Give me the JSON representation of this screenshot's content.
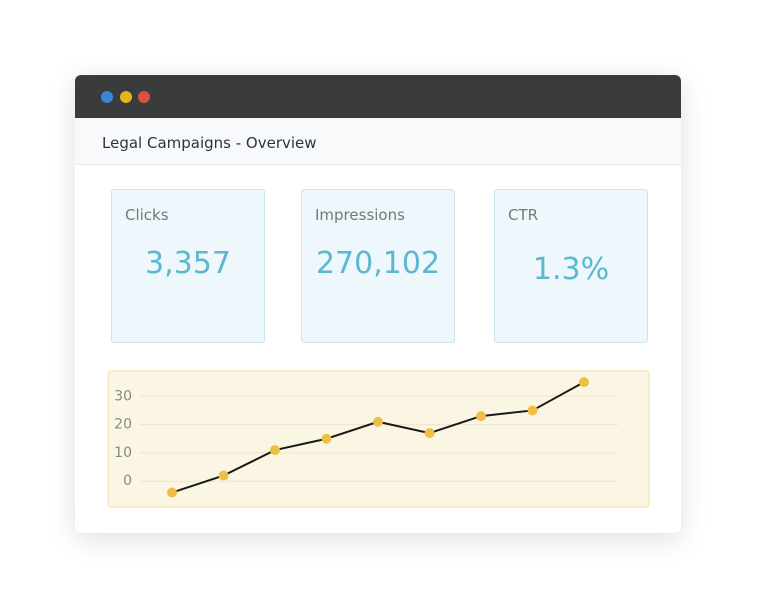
{
  "header": {
    "title": "Legal Campaigns - Overview"
  },
  "stats": [
    {
      "label": "Clicks",
      "value": "3,357"
    },
    {
      "label": "Impressions",
      "value": "270,102"
    },
    {
      "label": "CTR",
      "value": "1.3%"
    }
  ],
  "chart_data": {
    "type": "line",
    "values": [
      -4,
      2,
      11,
      15,
      21,
      17,
      23,
      25,
      35
    ],
    "color": "#1a1a1a",
    "marker_color": "#eebf45",
    "ylim": [
      -10,
      40
    ],
    "yticks": [
      0,
      10,
      20,
      30
    ],
    "grid": true
  }
}
